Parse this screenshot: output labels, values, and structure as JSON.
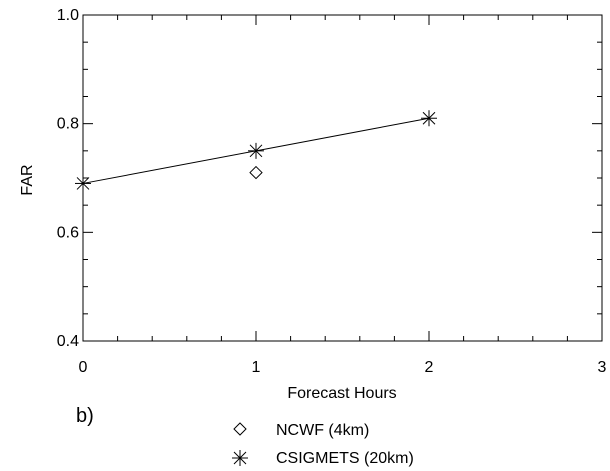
{
  "chart_data": {
    "type": "scatter",
    "xlabel": "Forecast Hours",
    "ylabel": "FAR",
    "xlim": [
      0,
      3
    ],
    "ylim": [
      0.4,
      1.0
    ],
    "x_ticks": [
      "0",
      "1",
      "2",
      "3"
    ],
    "y_ticks": [
      "0.4",
      "0.6",
      "0.8",
      "1.0"
    ],
    "grid": false,
    "legend_position": "bottom-center",
    "series": [
      {
        "name": "NCWF (4km)",
        "marker": "diamond",
        "line": false,
        "x": [
          1
        ],
        "y": [
          0.71
        ]
      },
      {
        "name": "CSIGMETS (20km)",
        "marker": "asterisk",
        "line": true,
        "x": [
          0,
          1,
          2
        ],
        "y": [
          0.69,
          0.75,
          0.81
        ]
      }
    ],
    "panel_label": "b)"
  }
}
